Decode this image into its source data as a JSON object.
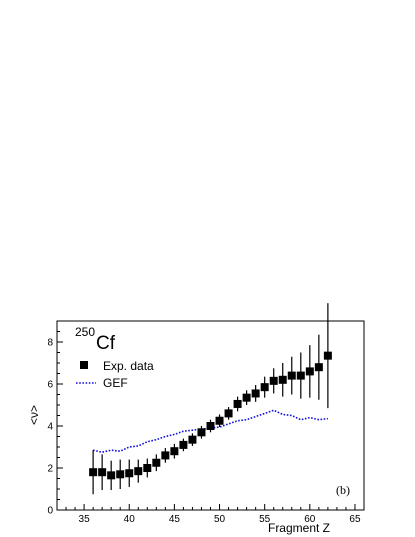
{
  "chart_data": {
    "type": "scatter",
    "xlabel": "Fragment Z",
    "ylabel": "<ν>",
    "xlim": [
      32,
      66
    ],
    "ylim": [
      0,
      9
    ],
    "x_ticks": [
      35,
      40,
      45,
      50,
      55,
      60,
      65
    ],
    "y_ticks": [
      0,
      2,
      4,
      6,
      8
    ],
    "nuclide_mass": "250",
    "nuclide_symbol": "Cf",
    "panel_label": "(b)",
    "legend_position": "top-left",
    "series": [
      {
        "name": "Exp. data",
        "style": "square-markers-with-error-bars",
        "color": "#000000",
        "x": [
          36,
          37,
          38,
          39,
          40,
          41,
          42,
          43,
          44,
          45,
          46,
          47,
          48,
          49,
          50,
          51,
          52,
          53,
          54,
          55,
          56,
          57,
          58,
          59,
          60,
          61,
          62
        ],
        "y": [
          1.8,
          1.8,
          1.65,
          1.7,
          1.75,
          1.85,
          2.0,
          2.25,
          2.6,
          2.8,
          3.1,
          3.35,
          3.7,
          4.0,
          4.25,
          4.6,
          5.05,
          5.35,
          5.55,
          5.85,
          6.15,
          6.2,
          6.4,
          6.4,
          6.6,
          6.8,
          7.35
        ],
        "y_err": [
          1.05,
          0.85,
          0.7,
          0.7,
          0.65,
          0.55,
          0.45,
          0.4,
          0.35,
          0.35,
          0.3,
          0.3,
          0.3,
          0.3,
          0.3,
          0.3,
          0.35,
          0.35,
          0.4,
          0.5,
          0.6,
          0.8,
          0.9,
          1.1,
          1.25,
          1.55,
          2.5
        ]
      },
      {
        "name": "GEF",
        "style": "dotted-line",
        "color": "#1010e0",
        "x": [
          36,
          37,
          38,
          39,
          40,
          41,
          42,
          43,
          44,
          45,
          46,
          47,
          48,
          49,
          50,
          51,
          52,
          53,
          54,
          55,
          56,
          57,
          58,
          59,
          60,
          61,
          62
        ],
        "y": [
          2.85,
          2.75,
          2.85,
          2.8,
          3.0,
          3.05,
          3.25,
          3.35,
          3.5,
          3.6,
          3.75,
          3.8,
          3.85,
          3.9,
          3.95,
          4.1,
          4.25,
          4.3,
          4.45,
          4.6,
          4.75,
          4.55,
          4.5,
          4.3,
          4.4,
          4.3,
          4.35
        ]
      }
    ]
  }
}
